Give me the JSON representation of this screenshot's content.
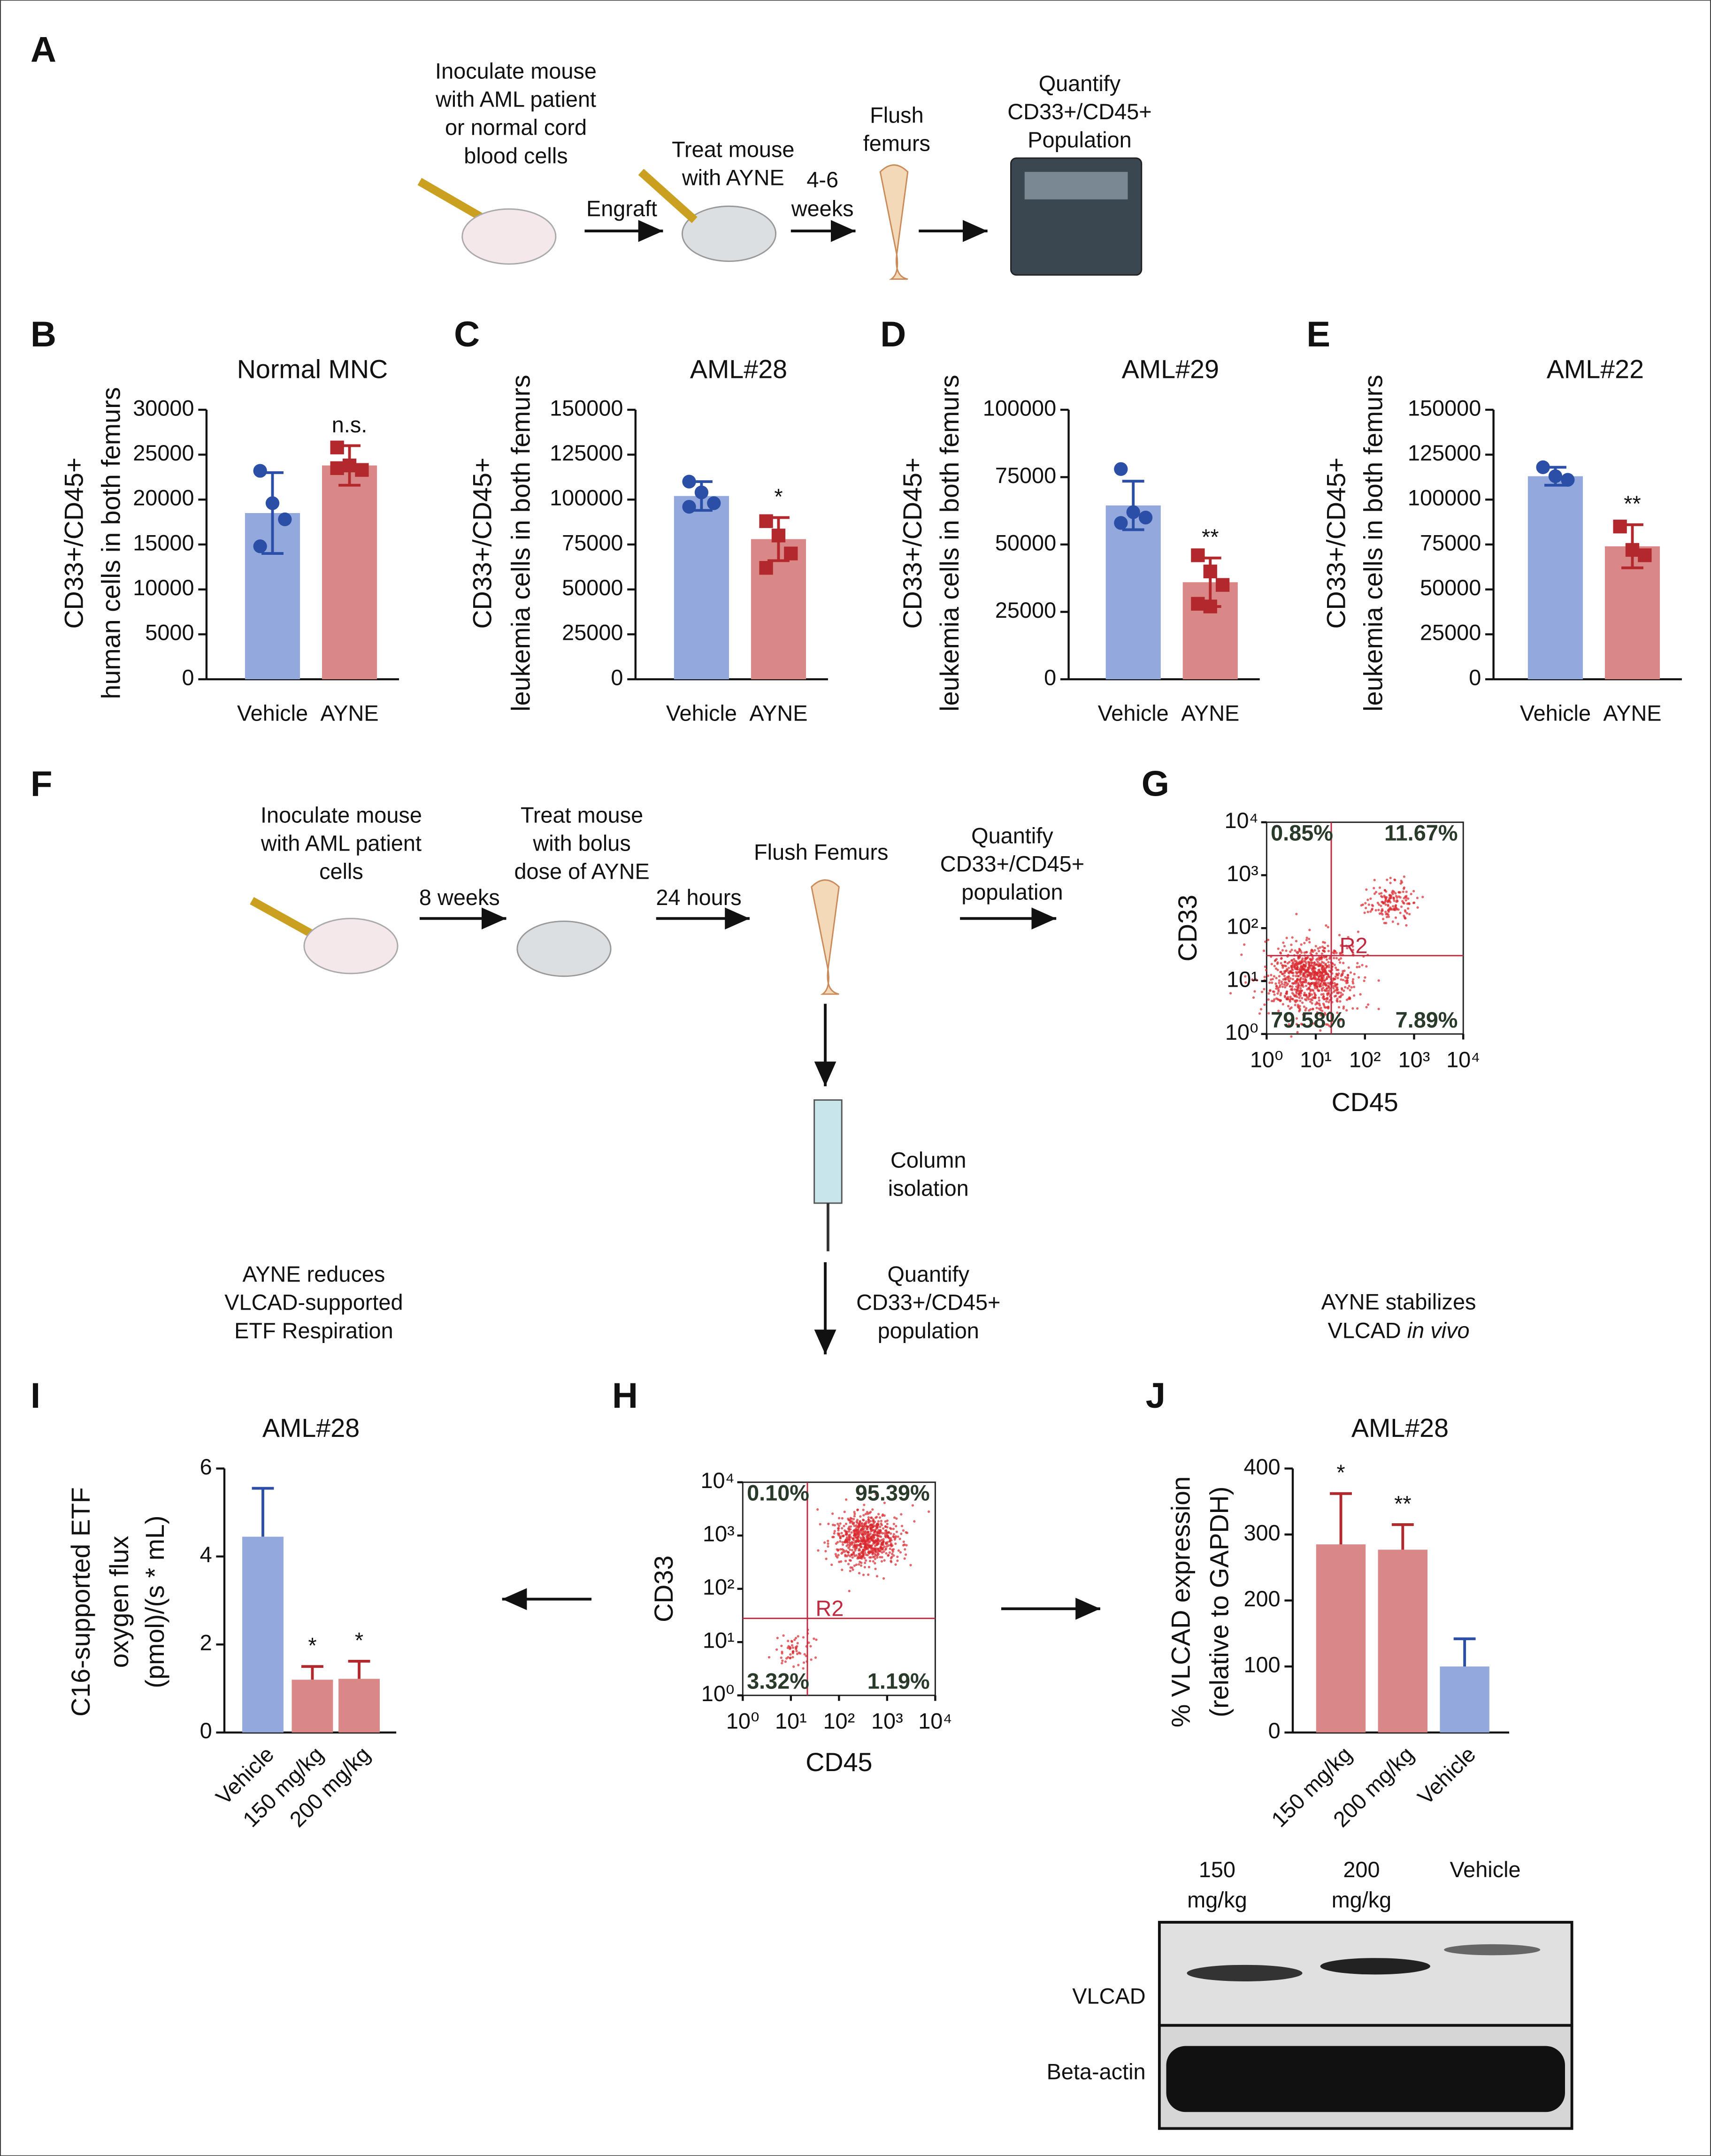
{
  "panel_labels": [
    "A",
    "B",
    "C",
    "D",
    "E",
    "F",
    "G",
    "H",
    "I",
    "J"
  ],
  "schematic_a": {
    "step1": [
      "Inoculate mouse",
      "with AML patient",
      "or normal cord",
      "blood cells"
    ],
    "arrow1": "Engraft",
    "step2": [
      "Treat mouse",
      "with AYNE"
    ],
    "arrow2": [
      "4-6",
      "weeks"
    ],
    "step3": [
      "Flush",
      "femurs"
    ],
    "step4": [
      "Quantify",
      "CD33+/CD45+",
      "Population"
    ]
  },
  "schematic_f": {
    "step1": [
      "Inoculate mouse",
      "with AML patient",
      "cells"
    ],
    "arrow1": "8 weeks",
    "step2": [
      "Treat mouse",
      "with bolus",
      "dose of AYNE"
    ],
    "arrow2": "24 hours",
    "step3": "Flush Femurs",
    "step4": [
      "Quantify",
      "CD33+/CD45+",
      "population"
    ],
    "step5": [
      "Column",
      "isolation"
    ],
    "step6": [
      "Quantify",
      "CD33+/CD45+",
      "population"
    ]
  },
  "notes": {
    "i": [
      "AYNE reduces",
      "VLCAD-supported",
      "ETF Respiration"
    ],
    "j": [
      "AYNE stabilizes",
      "VLCAD "
    ],
    "j_italic": "in vivo"
  },
  "western_blot": {
    "lanes": [
      [
        "150",
        "mg/kg"
      ],
      [
        "200",
        "mg/kg"
      ],
      [
        "Vehicle"
      ]
    ],
    "rows": [
      "VLCAD",
      "Beta-actin"
    ]
  },
  "chart_data": [
    {
      "type": "bar",
      "title": "Normal MNC",
      "ylabel": [
        "CD33+/CD45+",
        "human cells in both femurs"
      ],
      "categories": [
        "Vehicle",
        "AYNE"
      ],
      "values": [
        18500,
        23800
      ],
      "errors": [
        4500,
        2200
      ],
      "colors": [
        "#93a8dc",
        "#d98787"
      ],
      "point_colors": [
        "#2b4fa6",
        "#b3282c"
      ],
      "points": [
        [
          23200,
          19600,
          17800,
          14800
        ],
        [
          25800,
          23800,
          23300,
          23500
        ]
      ],
      "annotations": [
        null,
        "n.s."
      ],
      "ylim": [
        0,
        30000
      ],
      "yticks": [
        0,
        5000,
        10000,
        15000,
        20000,
        25000,
        30000
      ]
    },
    {
      "type": "bar",
      "title": "AML#28",
      "ylabel": [
        "CD33+/CD45+",
        "leukemia cells in both femurs"
      ],
      "categories": [
        "Vehicle",
        "AYNE"
      ],
      "values": [
        102000,
        78000
      ],
      "errors": [
        8000,
        12000
      ],
      "colors": [
        "#93a8dc",
        "#d98787"
      ],
      "point_colors": [
        "#2b4fa6",
        "#b3282c"
      ],
      "points": [
        [
          110000,
          104000,
          98000,
          96000
        ],
        [
          88000,
          80000,
          70000,
          62000
        ]
      ],
      "annotations": [
        null,
        "*"
      ],
      "ylim": [
        0,
        150000
      ],
      "yticks": [
        0,
        25000,
        50000,
        75000,
        100000,
        125000,
        150000
      ]
    },
    {
      "type": "bar",
      "title": "AML#29",
      "ylabel": [
        "CD33+/CD45+",
        "leukemia cells in both femurs"
      ],
      "categories": [
        "Vehicle",
        "AYNE"
      ],
      "values": [
        64500,
        36000
      ],
      "errors": [
        9000,
        9000
      ],
      "colors": [
        "#93a8dc",
        "#d98787"
      ],
      "point_colors": [
        "#2b4fa6",
        "#b3282c"
      ],
      "points": [
        [
          78000,
          62000,
          60000,
          58000
        ],
        [
          46000,
          40000,
          35000,
          28000,
          27000
        ]
      ],
      "annotations": [
        null,
        "**"
      ],
      "ylim": [
        0,
        100000
      ],
      "yticks": [
        0,
        25000,
        50000,
        75000,
        100000
      ]
    },
    {
      "type": "bar",
      "title": "AML#22",
      "ylabel": [
        "CD33+/CD45+",
        "leukemia cells in both femurs"
      ],
      "categories": [
        "Vehicle",
        "AYNE"
      ],
      "values": [
        113000,
        74000
      ],
      "errors": [
        5000,
        12000
      ],
      "colors": [
        "#93a8dc",
        "#d98787"
      ],
      "point_colors": [
        "#2b4fa6",
        "#b3282c"
      ],
      "points": [
        [
          118000,
          113000,
          111000
        ],
        [
          85000,
          72000,
          69000
        ]
      ],
      "annotations": [
        null,
        "**"
      ],
      "ylim": [
        0,
        150000
      ],
      "yticks": [
        0,
        25000,
        50000,
        75000,
        100000,
        125000,
        150000
      ]
    },
    {
      "type": "flow",
      "xlabel": "CD45",
      "ylabel": "CD33",
      "xscale": "log",
      "yscale": "log",
      "xlim": [
        1,
        10000
      ],
      "ylim": [
        1,
        10000
      ],
      "xticks": [
        {
          "value": 1,
          "label": "10⁰"
        },
        {
          "value": 10,
          "label": "10¹"
        },
        {
          "value": 100,
          "label": "10²"
        },
        {
          "value": 1000,
          "label": "10³"
        },
        {
          "value": 10000,
          "label": "10⁴"
        }
      ],
      "yticks": [
        {
          "value": 1,
          "label": "10⁰"
        },
        {
          "value": 10,
          "label": "10¹"
        },
        {
          "value": 100,
          "label": "10²"
        },
        {
          "value": 1000,
          "label": "10³"
        },
        {
          "value": 10000,
          "label": "10⁴"
        }
      ],
      "gate": "R2",
      "quadrants": [
        "0.85%",
        "11.67%",
        "79.58%",
        "7.89%"
      ]
    },
    {
      "type": "flow",
      "xlabel": "CD45",
      "ylabel": "CD33",
      "xscale": "log",
      "yscale": "log",
      "xlim": [
        1,
        10000
      ],
      "ylim": [
        1,
        10000
      ],
      "xticks": [
        {
          "value": 1,
          "label": "10⁰"
        },
        {
          "value": 10,
          "label": "10¹"
        },
        {
          "value": 100,
          "label": "10²"
        },
        {
          "value": 1000,
          "label": "10³"
        },
        {
          "value": 10000,
          "label": "10⁴"
        }
      ],
      "yticks": [
        {
          "value": 1,
          "label": "10⁰"
        },
        {
          "value": 10,
          "label": "10¹"
        },
        {
          "value": 100,
          "label": "10²"
        },
        {
          "value": 1000,
          "label": "10³"
        },
        {
          "value": 10000,
          "label": "10⁴"
        }
      ],
      "gate": "R2",
      "quadrants": [
        "0.10%",
        "95.39%",
        "3.32%",
        "1.19%"
      ]
    },
    {
      "type": "bar",
      "title": "AML#28",
      "ylabel": [
        "C16-supported ETF",
        "oxygen flux",
        "(pmol)/(s * mL)"
      ],
      "categories": [
        "Vehicle",
        "150 mg/kg",
        "200 mg/kg"
      ],
      "values": [
        4.45,
        1.2,
        1.22
      ],
      "errors": [
        1.1,
        0.3,
        0.4
      ],
      "colors": [
        "#93a8dc",
        "#d98787",
        "#d98787"
      ],
      "point_colors": [
        "#2b4fa6",
        "#b3282c",
        "#b3282c"
      ],
      "annotations": [
        null,
        "*",
        "*"
      ],
      "ylim": [
        0,
        6
      ],
      "yticks": [
        0,
        2,
        4,
        6
      ]
    },
    {
      "type": "bar",
      "title": "AML#28",
      "ylabel": [
        "% VLCAD expression",
        "(relative to GAPDH)"
      ],
      "categories": [
        "150 mg/kg",
        "200 mg/kg",
        "Vehicle"
      ],
      "values": [
        285,
        277,
        100
      ],
      "errors": [
        77,
        38,
        42
      ],
      "colors": [
        "#d98787",
        "#d98787",
        "#93a8dc"
      ],
      "point_colors": [
        "#b3282c",
        "#b3282c",
        "#2b4fa6"
      ],
      "annotations": [
        "*",
        "**",
        null
      ],
      "ylim": [
        0,
        400
      ],
      "yticks": [
        0,
        100,
        200,
        300,
        400
      ]
    }
  ]
}
